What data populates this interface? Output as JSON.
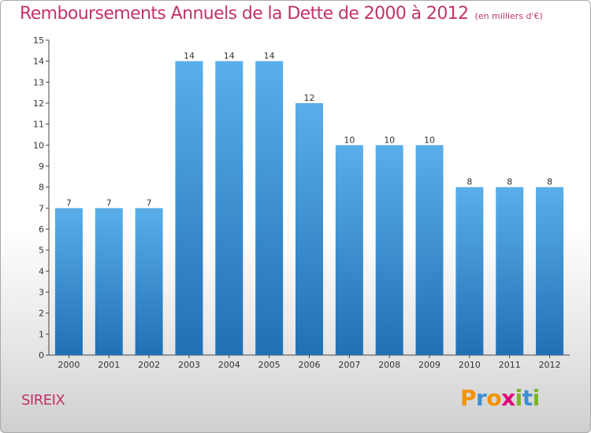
{
  "title": "Remboursements Annuels de la Dette de 2000 à 2012",
  "subtitle": "(en milliers d'€)",
  "commune": "SIREIX",
  "logo": {
    "text": "Proxiti",
    "letters": [
      {
        "ch": "P",
        "color": "#f39200"
      },
      {
        "ch": "r",
        "color": "#3d8fd1"
      },
      {
        "ch": "o",
        "color": "#f39200"
      },
      {
        "ch": "x",
        "color": "#e2007a"
      },
      {
        "ch": "i",
        "color": "#7ab51d"
      },
      {
        "ch": "t",
        "color": "#3d8fd1"
      },
      {
        "ch": "i",
        "color": "#7ab51d"
      }
    ]
  },
  "colors": {
    "bar_top": "#5aaeea",
    "bar_bottom": "#2170b5",
    "title": "#c0336b",
    "label": "#333333",
    "axis": "#444444"
  },
  "chart_data": {
    "type": "bar",
    "title": "Remboursements Annuels de la Dette de 2000 à 2012",
    "subtitle": "(en milliers d'€)",
    "categories": [
      "2000",
      "2001",
      "2002",
      "2003",
      "2004",
      "2005",
      "2006",
      "2007",
      "2008",
      "2009",
      "2010",
      "2011",
      "2012"
    ],
    "values": [
      7,
      7,
      7,
      14,
      14,
      14,
      12,
      10,
      10,
      10,
      8,
      8,
      8
    ],
    "ylim": [
      0,
      15
    ],
    "yticks": [
      0,
      1,
      2,
      3,
      4,
      5,
      6,
      7,
      8,
      9,
      10,
      11,
      12,
      13,
      14,
      15
    ],
    "data_labels": true,
    "grid": false
  }
}
